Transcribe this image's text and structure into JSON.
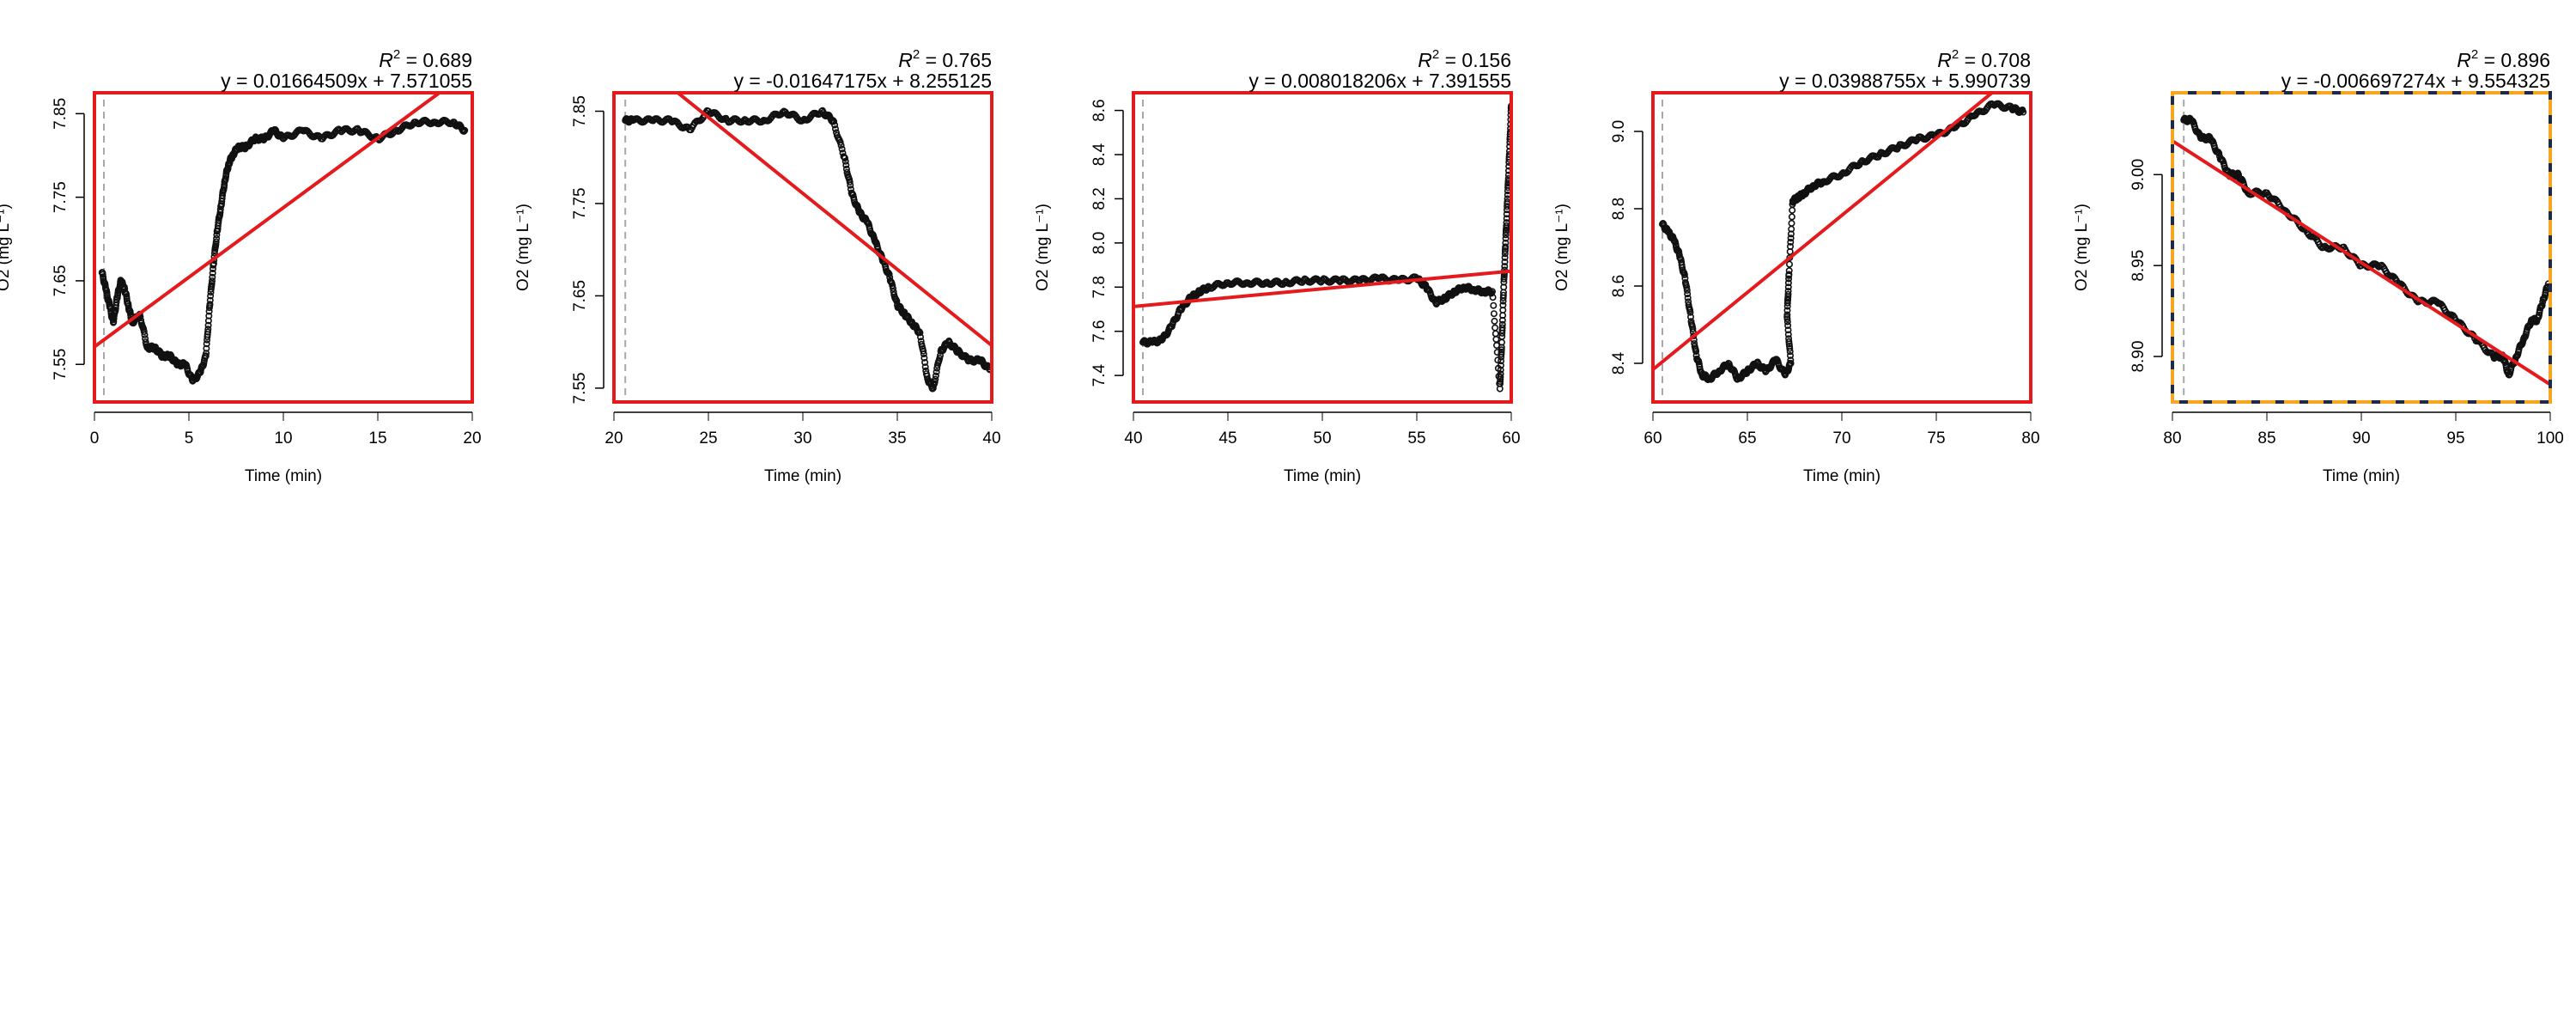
{
  "chart_data": [
    {
      "type": "scatter",
      "xlabel": "Time (min)",
      "ylabel": "O2 (mg L⁻¹)",
      "r2_label": "R",
      "r2_exp": "2",
      "r2_value": "= 0.689",
      "equation": "y = 0.01664509x + 7.571055",
      "xlim": [
        0,
        20
      ],
      "ylim": [
        7.505,
        7.875
      ],
      "xticks": [
        0,
        5,
        10,
        15,
        20
      ],
      "yticks": [
        7.55,
        7.65,
        7.75,
        7.85
      ],
      "dashed_line_x": 0.5,
      "fit": {
        "slope": 0.01664509,
        "intercept": 7.571055
      },
      "box_style": "red",
      "series_x": [
        0.4,
        0.6,
        0.8,
        1.0,
        1.2,
        1.4,
        1.6,
        1.8,
        2.0,
        2.4,
        2.8,
        3.2,
        3.6,
        4.0,
        4.4,
        4.8,
        5.2,
        5.6,
        5.9,
        6.1,
        6.3,
        6.5,
        6.7,
        6.9,
        7.1,
        7.3,
        7.6,
        8.0,
        8.5,
        9.0,
        9.5,
        10.0,
        11.0,
        12.0,
        13.0,
        14.0,
        15.0,
        16.0,
        17.0,
        18.0,
        19.0,
        19.6
      ],
      "series_y": [
        7.66,
        7.64,
        7.62,
        7.6,
        7.63,
        7.65,
        7.64,
        7.62,
        7.6,
        7.61,
        7.57,
        7.57,
        7.56,
        7.56,
        7.55,
        7.55,
        7.53,
        7.54,
        7.56,
        7.62,
        7.67,
        7.71,
        7.74,
        7.77,
        7.79,
        7.8,
        7.81,
        7.81,
        7.82,
        7.82,
        7.83,
        7.82,
        7.83,
        7.82,
        7.83,
        7.83,
        7.82,
        7.83,
        7.84,
        7.84,
        7.84,
        7.83
      ]
    },
    {
      "type": "scatter",
      "xlabel": "Time (min)",
      "ylabel": "O2 (mg L⁻¹)",
      "r2_label": "R",
      "r2_exp": "2",
      "r2_value": "= 0.765",
      "equation": "y = -0.01647175x + 8.255125",
      "xlim": [
        20,
        40
      ],
      "ylim": [
        7.535,
        7.87
      ],
      "xticks": [
        20,
        25,
        30,
        35,
        40
      ],
      "yticks": [
        7.55,
        7.65,
        7.75,
        7.85
      ],
      "dashed_line_x": 20.6,
      "fit": {
        "slope": -0.01647175,
        "intercept": 8.255125
      },
      "box_style": "red",
      "series_x": [
        20.6,
        21.0,
        22.0,
        23.0,
        24.0,
        25.0,
        26.0,
        27.0,
        28.0,
        29.0,
        30.0,
        31.0,
        31.6,
        32.2,
        32.6,
        33.0,
        33.4,
        33.8,
        34.2,
        34.6,
        35.0,
        35.4,
        35.8,
        36.2,
        36.6,
        36.9,
        37.3,
        37.7,
        38.2,
        38.8,
        39.4,
        39.9
      ],
      "series_y": [
        7.84,
        7.84,
        7.84,
        7.84,
        7.83,
        7.85,
        7.84,
        7.84,
        7.84,
        7.85,
        7.84,
        7.85,
        7.84,
        7.8,
        7.76,
        7.74,
        7.73,
        7.71,
        7.69,
        7.67,
        7.64,
        7.63,
        7.62,
        7.61,
        7.56,
        7.55,
        7.59,
        7.6,
        7.59,
        7.58,
        7.58,
        7.57
      ]
    },
    {
      "type": "scatter",
      "xlabel": "Time (min)",
      "ylabel": "O2 (mg L⁻¹)",
      "r2_label": "R",
      "r2_exp": "2",
      "r2_value": "= 0.156",
      "equation": "y = 0.008018206x + 7.391555",
      "xlim": [
        40,
        60
      ],
      "ylim": [
        7.28,
        8.68
      ],
      "xticks": [
        40,
        45,
        50,
        55,
        60
      ],
      "yticks": [
        7.4,
        7.6,
        7.8,
        8.0,
        8.2,
        8.4,
        8.6
      ],
      "dashed_line_x": 40.5,
      "fit": {
        "slope": 0.008018206,
        "intercept": 7.391555
      },
      "box_style": "red",
      "series_x": [
        40.5,
        41.0,
        41.5,
        42.0,
        42.5,
        43.0,
        43.5,
        44.0,
        45.0,
        46.0,
        47.0,
        48.0,
        49.0,
        50.0,
        51.0,
        52.0,
        53.0,
        54.0,
        55.0,
        55.5,
        56.0,
        56.5,
        57.0,
        57.5,
        58.0,
        58.5,
        59.0,
        59.4,
        59.5,
        59.6,
        59.7,
        59.8,
        59.9,
        60.0
      ],
      "series_y": [
        7.55,
        7.55,
        7.56,
        7.62,
        7.7,
        7.75,
        7.78,
        7.8,
        7.82,
        7.82,
        7.82,
        7.82,
        7.83,
        7.83,
        7.83,
        7.83,
        7.84,
        7.83,
        7.84,
        7.8,
        7.73,
        7.75,
        7.78,
        7.8,
        7.79,
        7.78,
        7.78,
        7.34,
        7.55,
        7.8,
        8.0,
        8.2,
        8.4,
        8.62
      ]
    },
    {
      "type": "scatter",
      "xlabel": "Time (min)",
      "ylabel": "O2 (mg L⁻¹)",
      "r2_label": "R",
      "r2_exp": "2",
      "r2_value": "= 0.708",
      "equation": "y = 0.03988755x + 5.990739",
      "xlim": [
        60,
        80
      ],
      "ylim": [
        8.3,
        9.1
      ],
      "xticks": [
        60,
        65,
        70,
        75,
        80
      ],
      "yticks": [
        8.4,
        8.6,
        8.8,
        9.0
      ],
      "dashed_line_x": 60.5,
      "fit": {
        "slope": 0.03988755,
        "intercept": 5.990739
      },
      "box_style": "red",
      "series_x": [
        60.5,
        60.8,
        61.1,
        61.4,
        61.7,
        62.0,
        62.3,
        62.6,
        63.0,
        63.5,
        64.0,
        64.5,
        65.0,
        65.5,
        66.0,
        66.5,
        67.0,
        67.3,
        67.1,
        67.2,
        67.4,
        67.7,
        68.0,
        68.5,
        69.0,
        70.0,
        71.0,
        72.0,
        73.0,
        74.0,
        75.0,
        76.0,
        77.0,
        78.0,
        79.0,
        79.6
      ],
      "series_y": [
        8.76,
        8.74,
        8.72,
        8.68,
        8.62,
        8.52,
        8.42,
        8.37,
        8.36,
        8.38,
        8.4,
        8.36,
        8.38,
        8.4,
        8.38,
        8.41,
        8.37,
        8.4,
        8.52,
        8.63,
        8.82,
        8.83,
        8.84,
        8.86,
        8.87,
        8.89,
        8.92,
        8.94,
        8.96,
        8.98,
        8.99,
        9.01,
        9.04,
        9.07,
        9.06,
        9.05
      ]
    },
    {
      "type": "scatter",
      "xlabel": "Time (min)",
      "ylabel": "O2 (mg L⁻¹)",
      "r2_label": "R",
      "r2_exp": "2",
      "r2_value": "= 0.896",
      "equation": "y = -0.006697274x + 9.554325",
      "xlim": [
        80,
        100
      ],
      "ylim": [
        8.875,
        9.045
      ],
      "xticks": [
        80,
        85,
        90,
        95,
        100
      ],
      "yticks": [
        8.9,
        8.95,
        9.0
      ],
      "dashed_line_x": 80.6,
      "fit": {
        "slope": -0.006697274,
        "intercept": 9.554325
      },
      "box_style": "orange-dashed",
      "series_x": [
        80.6,
        81.0,
        81.5,
        82.0,
        82.5,
        83.0,
        83.5,
        84.0,
        85.0,
        86.0,
        87.0,
        88.0,
        89.0,
        90.0,
        91.0,
        92.0,
        93.0,
        94.0,
        95.0,
        96.0,
        97.0,
        97.5,
        97.8,
        98.2,
        98.6,
        99.0,
        99.3,
        99.6,
        99.9
      ],
      "series_y": [
        9.03,
        9.03,
        9.02,
        9.02,
        9.01,
        9.0,
        9.0,
        8.99,
        8.99,
        8.98,
        8.97,
        8.96,
        8.96,
        8.95,
        8.95,
        8.94,
        8.93,
        8.93,
        8.92,
        8.91,
        8.9,
        8.9,
        8.89,
        8.9,
        8.91,
        8.92,
        8.92,
        8.93,
        8.94
      ]
    }
  ]
}
